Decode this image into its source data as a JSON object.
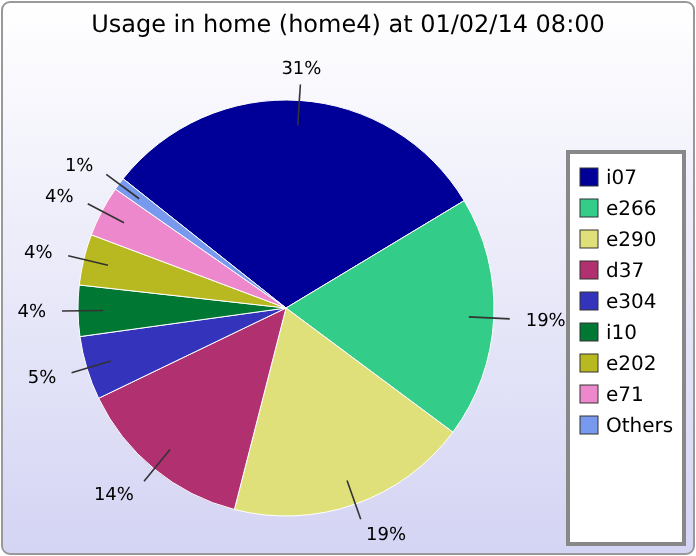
{
  "chart_data": {
    "type": "pie",
    "title": "Usage in home (home4) at 01/02/14 08:00",
    "categories": [
      "i07",
      "e266",
      "e290",
      "d37",
      "e304",
      "i10",
      "e202",
      "e71",
      "Others"
    ],
    "values": [
      31,
      19,
      19,
      14,
      5,
      4,
      4,
      4,
      1
    ],
    "colors": [
      "#000099",
      "#33cc88",
      "#e0e07a",
      "#b03070",
      "#3333bb",
      "#007733",
      "#b8b820",
      "#ee88cc",
      "#7799ee"
    ],
    "value_labels": [
      "31%",
      "19%",
      "19%",
      "14%",
      "5%",
      "4%",
      "4%",
      "4%",
      "1%"
    ],
    "legend": "right"
  }
}
